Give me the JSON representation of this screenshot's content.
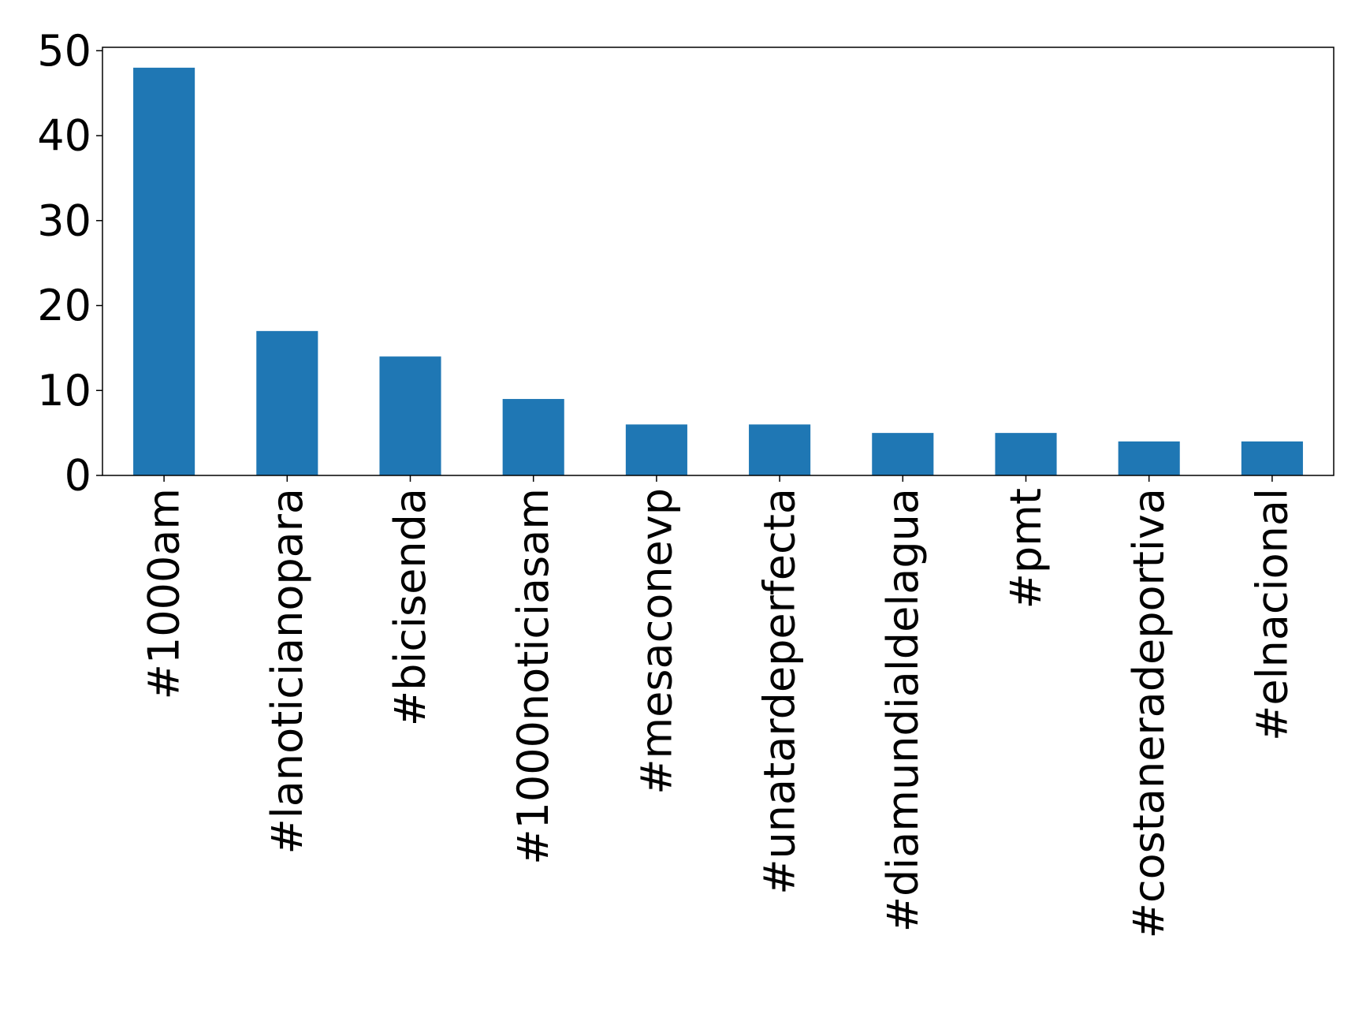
{
  "chart_data": {
    "type": "bar",
    "title": "",
    "xlabel": "",
    "ylabel": "",
    "categories": [
      "#1000am",
      "#lanoticianopara",
      "#bicisenda",
      "#1000noticiasam",
      "#mesaconevp",
      "#unatardeperfecta",
      "#diamundialdelagua",
      "#pmt",
      "#costaneradeportiva",
      "#elnacional"
    ],
    "values": [
      48,
      17,
      14,
      9,
      6,
      6,
      5,
      5,
      4,
      4
    ],
    "ylim": [
      0,
      50.4
    ],
    "yticks": [
      "0",
      "10",
      "20",
      "30",
      "40",
      "50"
    ],
    "ytick_values": [
      0,
      10,
      20,
      30,
      40,
      50
    ],
    "grid": false,
    "legend": "none",
    "bar_color": "#1f77b4"
  }
}
